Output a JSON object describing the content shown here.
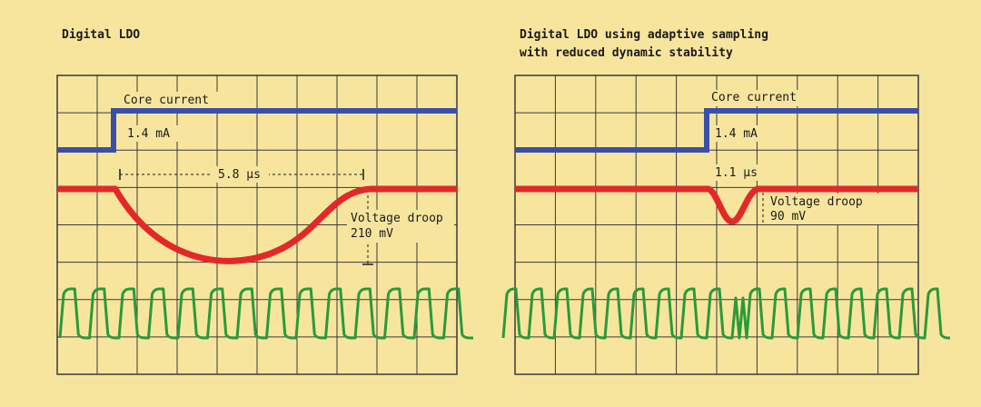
{
  "colors": {
    "background": "#f7e59e",
    "grid": "#3a3a3a",
    "current_trace": "#3a4faa",
    "voltage_trace": "#e3282a",
    "clock_trace": "#2a9a3a",
    "label_background": "#f7e59e"
  },
  "panels": [
    {
      "title_lines": [
        "Digital LDO"
      ],
      "core_current_label": "Core current",
      "current_value": "1.4 mA",
      "duration_label": "5.8 µs",
      "droop_label": "Voltage droop",
      "droop_value": "210 mV"
    },
    {
      "title_lines": [
        "Digital LDO using adaptive sampling",
        "with reduced dynamic stability"
      ],
      "core_current_label": "Core current",
      "current_value": "1.4 mA",
      "duration_label": "1.1 µs",
      "droop_label": "Voltage droop",
      "droop_value": "90 mV"
    }
  ]
}
